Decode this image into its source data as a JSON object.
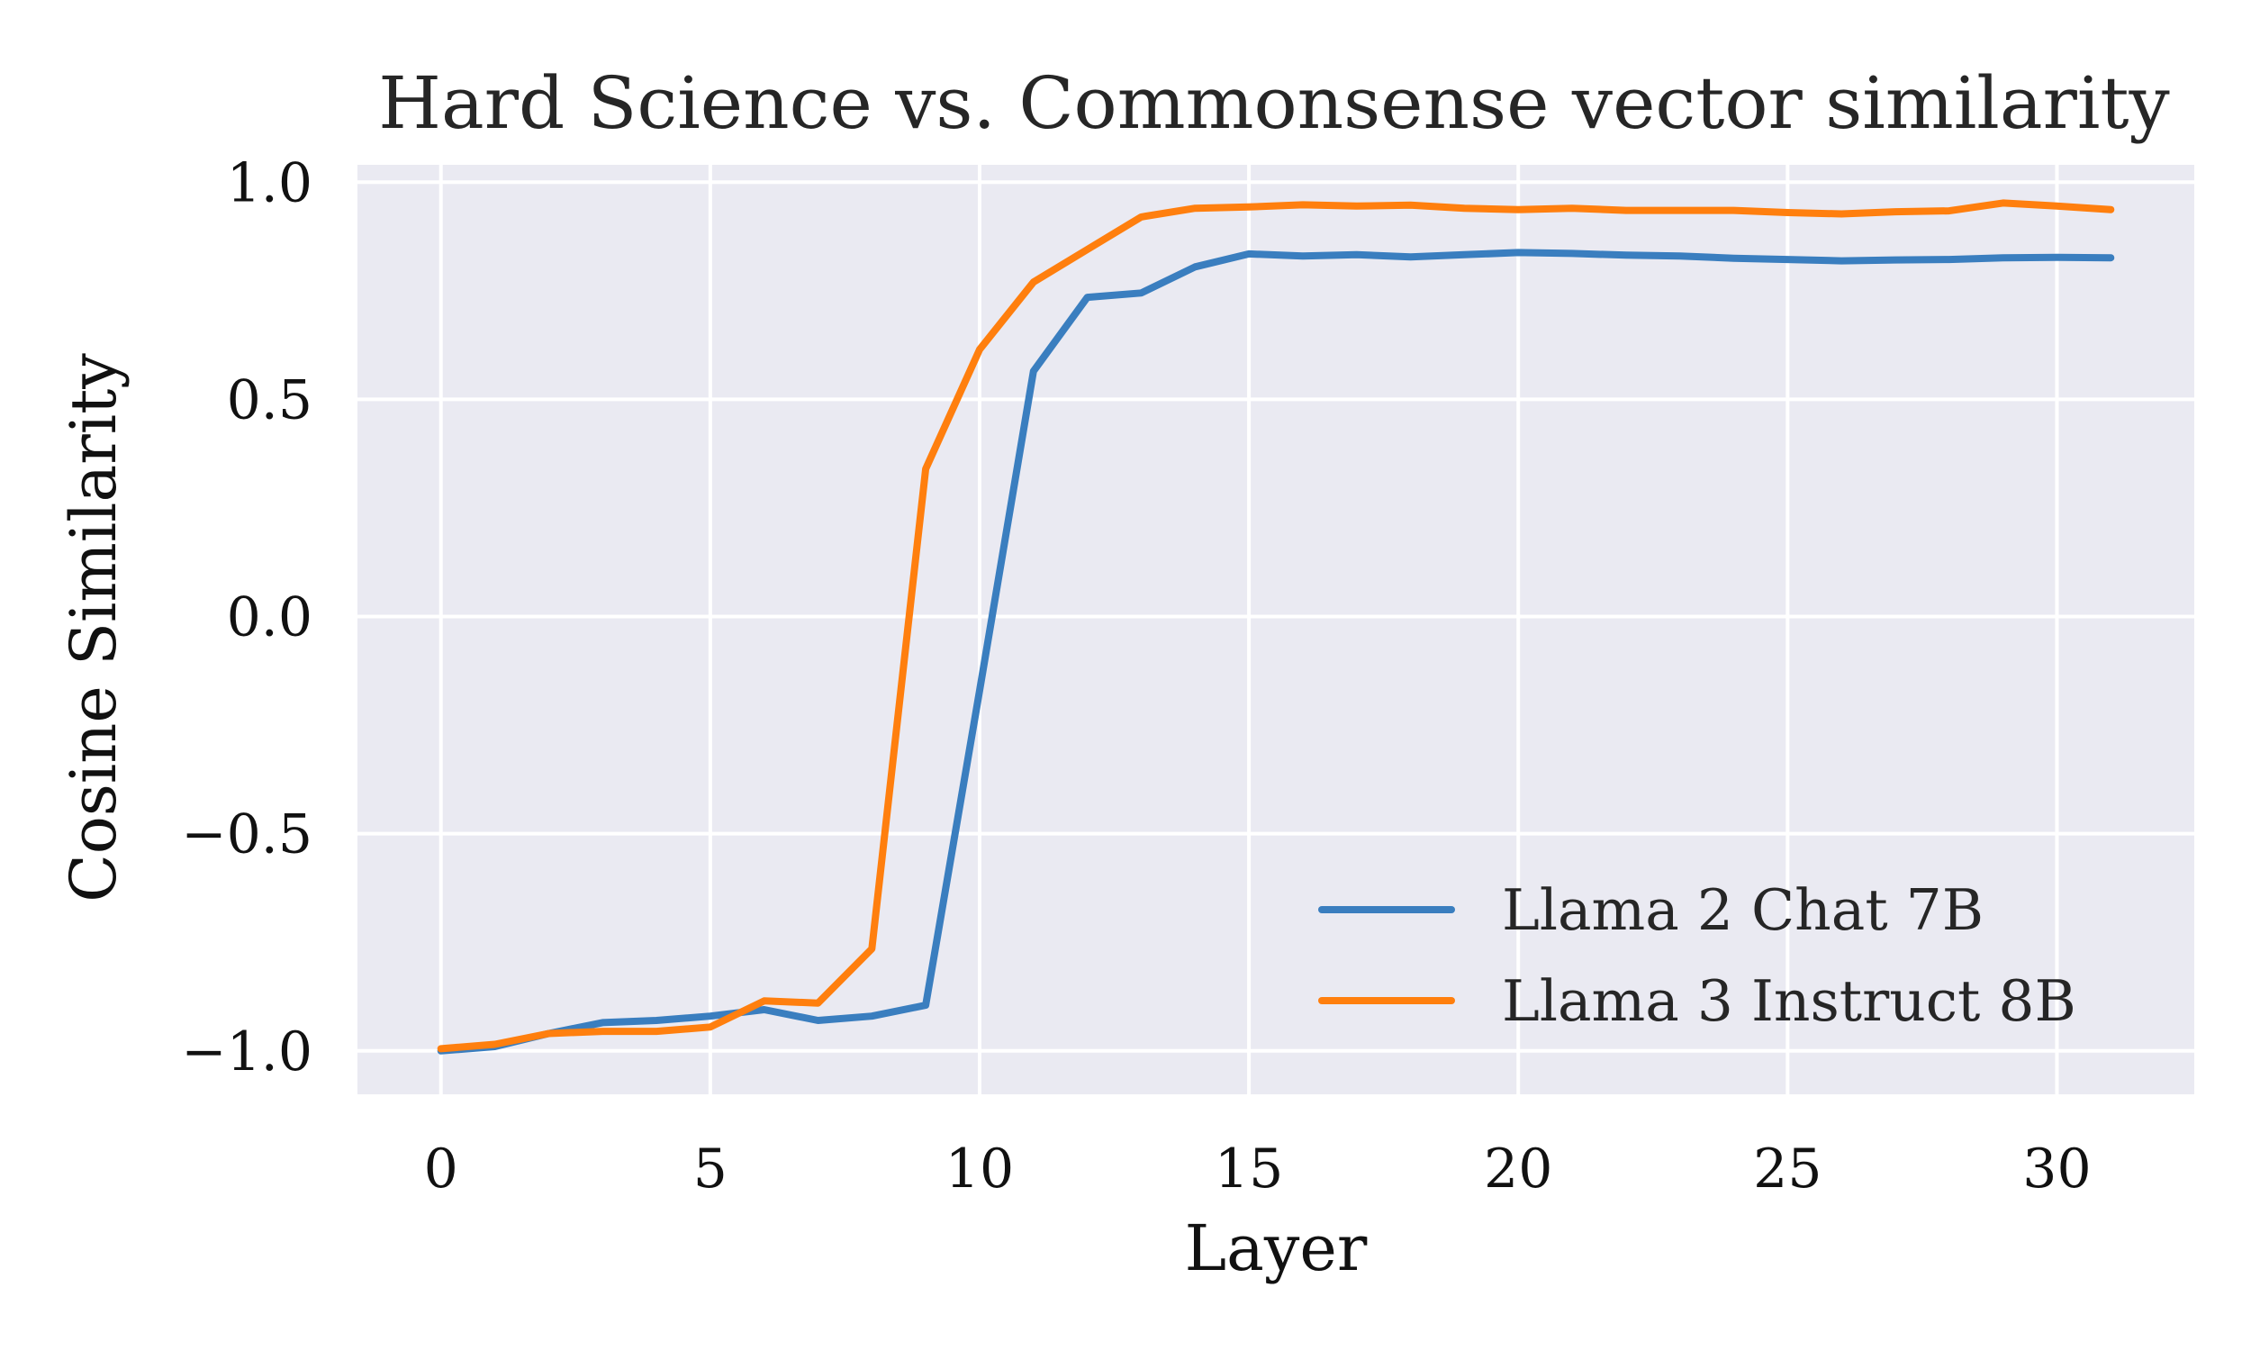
{
  "chart_data": {
    "type": "line",
    "title": "Hard Science vs. Commonsense vector similarity",
    "xlabel": "Layer",
    "ylabel": "Cosine Similarity",
    "xlim": [
      -1.55,
      32.55
    ],
    "ylim": [
      -1.1,
      1.04
    ],
    "xticks": [
      0,
      5,
      10,
      15,
      20,
      25,
      30
    ],
    "xtick_labels": [
      "0",
      "5",
      "10",
      "15",
      "20",
      "25",
      "30"
    ],
    "yticks": [
      -1.0,
      -0.5,
      0.0,
      0.5,
      1.0
    ],
    "ytick_labels": [
      "−1.0",
      "−0.5",
      "0.0",
      "0.5",
      "1.0"
    ],
    "grid": true,
    "legend_position": "lower-right",
    "x": [
      0,
      1,
      2,
      3,
      4,
      5,
      6,
      7,
      8,
      9,
      10,
      11,
      12,
      13,
      14,
      15,
      16,
      17,
      18,
      19,
      20,
      21,
      22,
      23,
      24,
      25,
      26,
      27,
      28,
      29,
      30,
      31
    ],
    "series": [
      {
        "name": "Llama 2 Chat 7B",
        "color": "#3a7ebf",
        "values": [
          -1.0,
          -0.99,
          -0.96,
          -0.935,
          -0.93,
          -0.92,
          -0.905,
          -0.93,
          -0.92,
          -0.895,
          -0.17,
          0.565,
          0.735,
          0.745,
          0.805,
          0.835,
          0.83,
          0.833,
          0.828,
          0.833,
          0.838,
          0.836,
          0.832,
          0.83,
          0.825,
          0.822,
          0.819,
          0.821,
          0.822,
          0.826,
          0.827,
          0.826
        ]
      },
      {
        "name": "Llama 3 Instruct 8B",
        "color": "#ff7f0e",
        "values": [
          -0.995,
          -0.985,
          -0.96,
          -0.955,
          -0.955,
          -0.945,
          -0.885,
          -0.89,
          -0.765,
          0.34,
          0.615,
          0.77,
          0.845,
          0.92,
          0.94,
          0.943,
          0.948,
          0.945,
          0.947,
          0.94,
          0.937,
          0.94,
          0.935,
          0.935,
          0.935,
          0.93,
          0.927,
          0.932,
          0.934,
          0.952,
          0.945,
          0.937
        ]
      }
    ]
  }
}
